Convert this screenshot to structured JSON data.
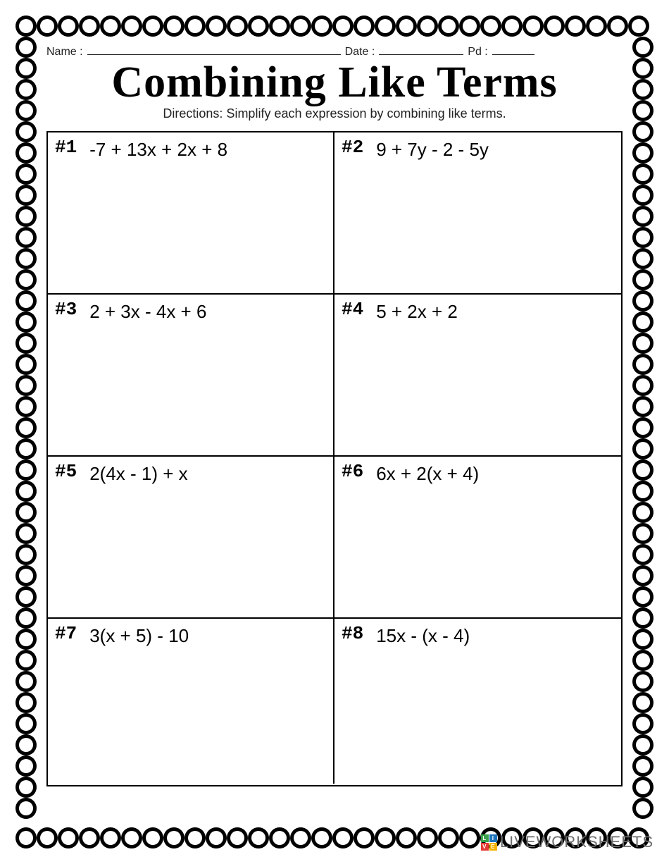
{
  "header": {
    "name_label": "Name :",
    "date_label": "Date :",
    "pd_label": "Pd :",
    "name_line_width": 360,
    "date_line_width": 120,
    "pd_line_width": 60
  },
  "title": "Combining Like Terms",
  "directions": "Directions: Simplify each expression by combining like terms.",
  "problems": [
    {
      "num": "#1",
      "expr": "-7 + 13x + 2x + 8"
    },
    {
      "num": "#2",
      "expr": "9 + 7y - 2 - 5y"
    },
    {
      "num": "#3",
      "expr": "2 + 3x - 4x + 6"
    },
    {
      "num": "#4",
      "expr": "5 + 2x + 2"
    },
    {
      "num": "#5",
      "expr": "2(4x - 1) + x"
    },
    {
      "num": "#6",
      "expr": "6x + 2(x + 4)"
    },
    {
      "num": "#7",
      "expr": "3(x + 5) - 10"
    },
    {
      "num": "#8",
      "expr": "15x - (x - 4)"
    }
  ],
  "grid": {
    "columns": 2,
    "rows": 4,
    "border_color": "#000000",
    "border_width": 2
  },
  "scallop_border": {
    "circle_radius": 15,
    "circle_stroke": "#000000",
    "circle_fill": "#000000",
    "spacing": 30,
    "outer_width": 914,
    "outer_height": 1190
  },
  "watermark": {
    "text": "LIVEWORKSHEETS",
    "colors": [
      "#3aa24a",
      "#1e74bb",
      "#e53935",
      "#f5b301"
    ],
    "letters": [
      "L",
      "I",
      "V",
      "E"
    ]
  },
  "colors": {
    "page_bg": "#ffffff",
    "text": "#000000",
    "muted": "#6d6d6d"
  },
  "typography": {
    "title_fontsize": 62,
    "directions_fontsize": 18,
    "problem_num_fontsize": 26,
    "problem_expr_fontsize": 26,
    "header_fontsize": 16
  }
}
